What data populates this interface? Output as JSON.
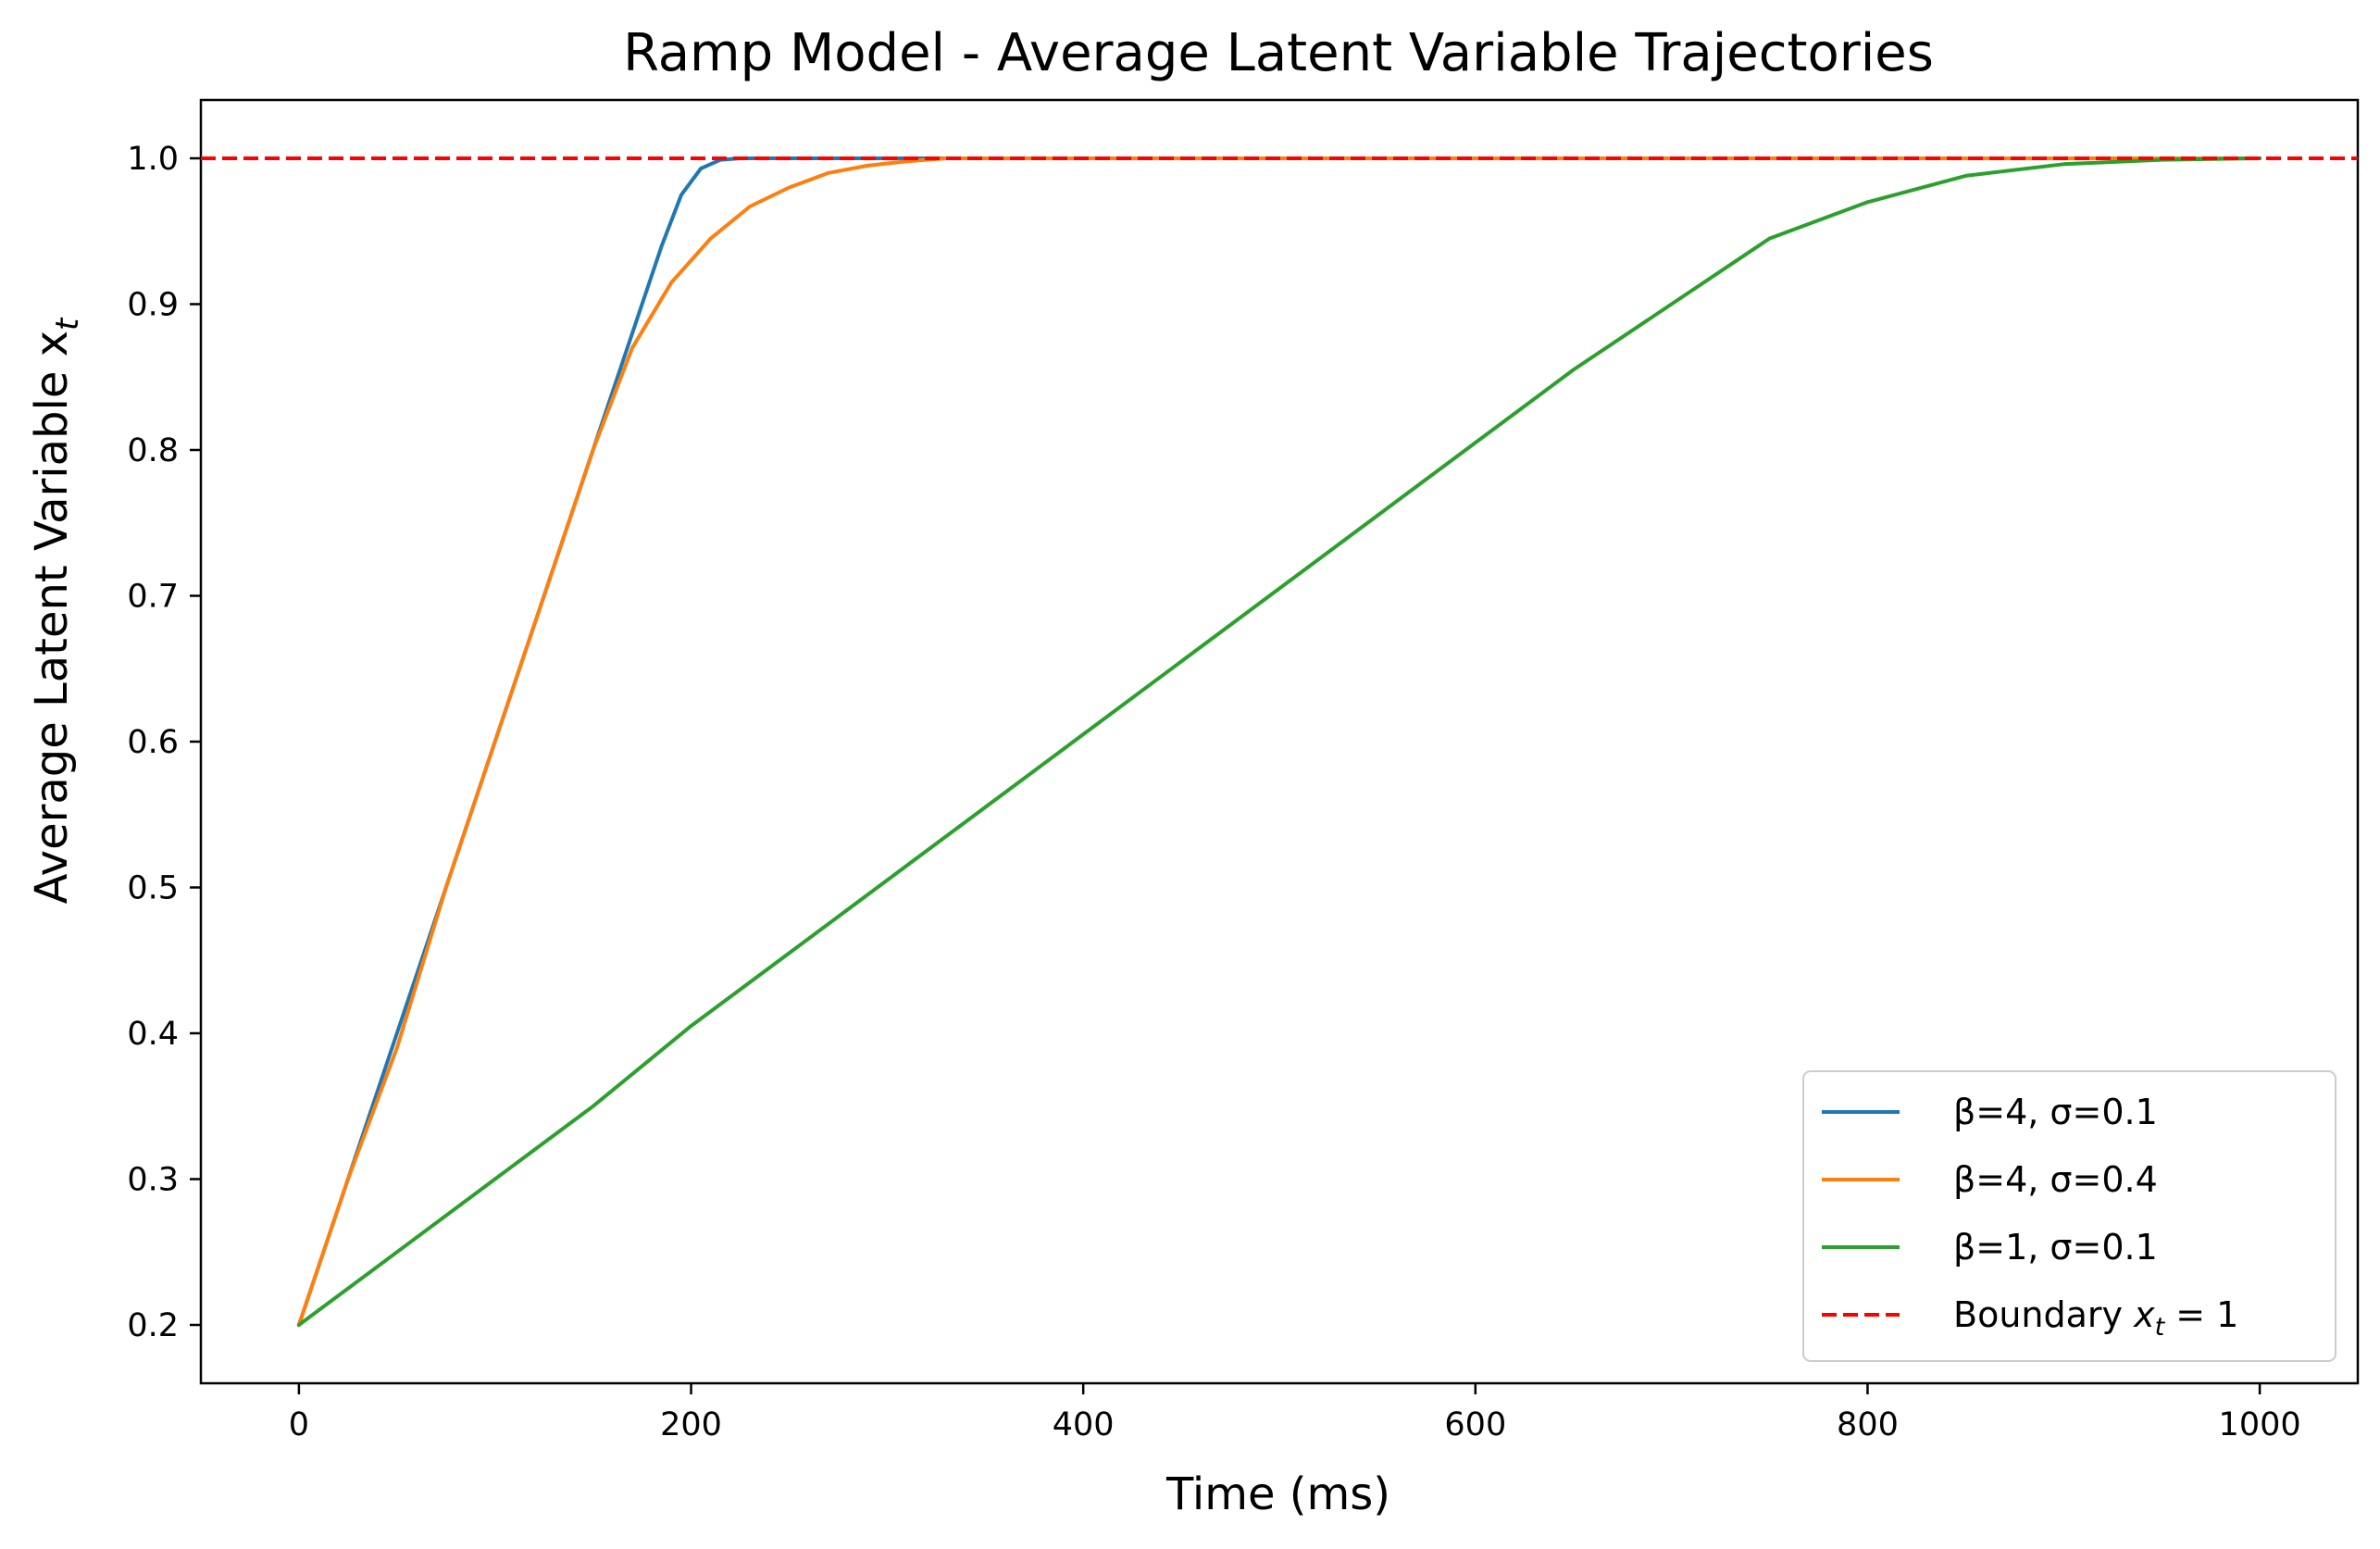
{
  "chart_data": {
    "type": "line",
    "title": "Ramp Model - Average Latent Variable Trajectories",
    "xlabel": "Time (ms)",
    "ylabel": "Average Latent Variable x",
    "ylabel_subscript": "t",
    "xlim": [
      -50,
      1050
    ],
    "ylim": [
      0.16,
      1.04
    ],
    "x_ticks": [
      0,
      200,
      400,
      600,
      800,
      1000
    ],
    "y_ticks": [
      0.2,
      0.3,
      0.4,
      0.5,
      0.6,
      0.7,
      0.8,
      0.9,
      1.0
    ],
    "x_tick_labels": [
      "0",
      "200",
      "400",
      "600",
      "800",
      "1000"
    ],
    "y_tick_labels": [
      "0.2",
      "0.3",
      "0.4",
      "0.5",
      "0.6",
      "0.7",
      "0.8",
      "0.9",
      "1.0"
    ],
    "grid": false,
    "legend_position": "lower-right",
    "series": [
      {
        "name": "β=4, σ=0.1",
        "color": "#1f77b4",
        "x": [
          0,
          25,
          50,
          75,
          100,
          125,
          150,
          175,
          185,
          195,
          205,
          215,
          225,
          1000
        ],
        "values": [
          0.2,
          0.3,
          0.4,
          0.5,
          0.6,
          0.7,
          0.8,
          0.9,
          0.94,
          0.975,
          0.993,
          0.999,
          1.0,
          1.0
        ]
      },
      {
        "name": "β=4, σ=0.4",
        "color": "#ff7f0e",
        "x": [
          0,
          25,
          50,
          75,
          100,
          125,
          150,
          170,
          190,
          210,
          230,
          250,
          270,
          290,
          310,
          330,
          1000
        ],
        "values": [
          0.2,
          0.3,
          0.39,
          0.5,
          0.6,
          0.7,
          0.8,
          0.87,
          0.915,
          0.945,
          0.967,
          0.98,
          0.99,
          0.995,
          0.998,
          1.0,
          1.0
        ]
      },
      {
        "name": "β=1, σ=0.1",
        "color": "#2ca02c",
        "x": [
          0,
          50,
          100,
          150,
          200,
          250,
          300,
          350,
          400,
          450,
          500,
          550,
          600,
          650,
          700,
          750,
          800,
          850,
          900,
          950,
          1000
        ],
        "values": [
          0.2,
          0.25,
          0.3,
          0.35,
          0.405,
          0.455,
          0.505,
          0.555,
          0.605,
          0.655,
          0.705,
          0.755,
          0.805,
          0.855,
          0.9,
          0.945,
          0.97,
          0.988,
          0.996,
          0.999,
          1.0
        ]
      }
    ],
    "boundary": {
      "name_prefix": "Boundary ",
      "name_math": "x",
      "name_subscript": "t",
      "name_suffix": " = 1",
      "y": 1.0,
      "color": "#ff0000",
      "style": "dashed"
    }
  }
}
